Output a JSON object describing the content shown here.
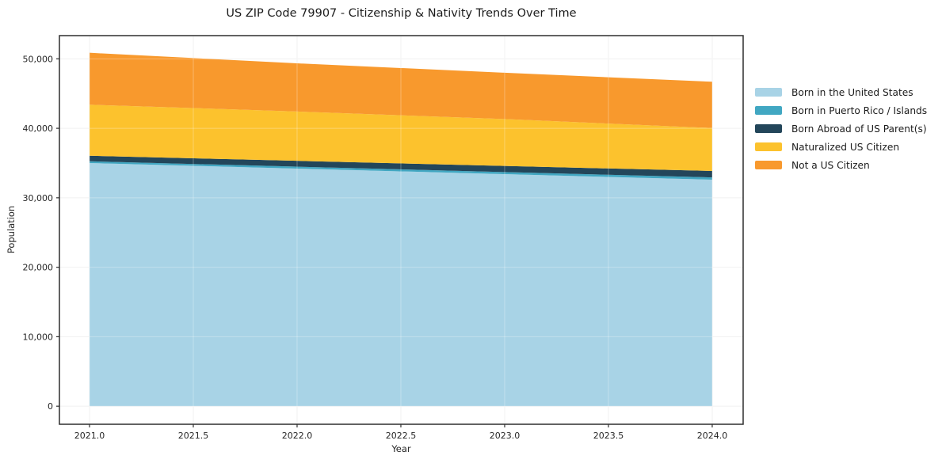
{
  "chart_data": {
    "type": "area",
    "stacked": true,
    "title": "US ZIP Code 79907 - Citizenship & Nativity Trends Over Time",
    "xlabel": "Year",
    "ylabel": "Population",
    "x": [
      2021,
      2022,
      2023,
      2024
    ],
    "series": [
      {
        "name": "Born in the United States",
        "color": "#a8d3e6",
        "values": [
          35000,
          34200,
          33400,
          32600
        ]
      },
      {
        "name": "Born in Puerto Rico / Islands",
        "color": "#41a7c2",
        "values": [
          250,
          280,
          300,
          330
        ]
      },
      {
        "name": "Born Abroad of US Parent(s)",
        "color": "#23465a",
        "values": [
          800,
          840,
          880,
          930
        ]
      },
      {
        "name": "Naturalized US Citizen",
        "color": "#fcc22d",
        "values": [
          7350,
          7100,
          6750,
          6180
        ]
      },
      {
        "name": "Not a US Citizen",
        "color": "#f8992d",
        "values": [
          7470,
          6930,
          6670,
          6660
        ]
      }
    ],
    "stack_totals": [
      50870,
      49350,
      48000,
      46700
    ],
    "xticks": {
      "values": [
        2021.0,
        2021.5,
        2022.0,
        2022.5,
        2023.0,
        2023.5,
        2024.0
      ],
      "labels": [
        "2021.0",
        "2021.5",
        "2022.0",
        "2022.5",
        "2023.0",
        "2023.5",
        "2024.0"
      ]
    },
    "yticks": {
      "values": [
        0,
        10000,
        20000,
        30000,
        40000,
        50000
      ],
      "labels": [
        "0",
        "10,000",
        "20,000",
        "30,000",
        "40,000",
        "50,000"
      ]
    },
    "xlim": [
      2020.855,
      2024.149
    ],
    "ylim": [
      -2600,
      53340
    ],
    "grid": true,
    "legend_position": "right-outside",
    "grid_color": "#ededed",
    "grid_overlay_color": "rgba(255,255,255,0.3)",
    "spine_color": "#2f2f2f",
    "tick_color": "#2f2f2f",
    "text_color": "#262626",
    "background": "#ffffff"
  }
}
